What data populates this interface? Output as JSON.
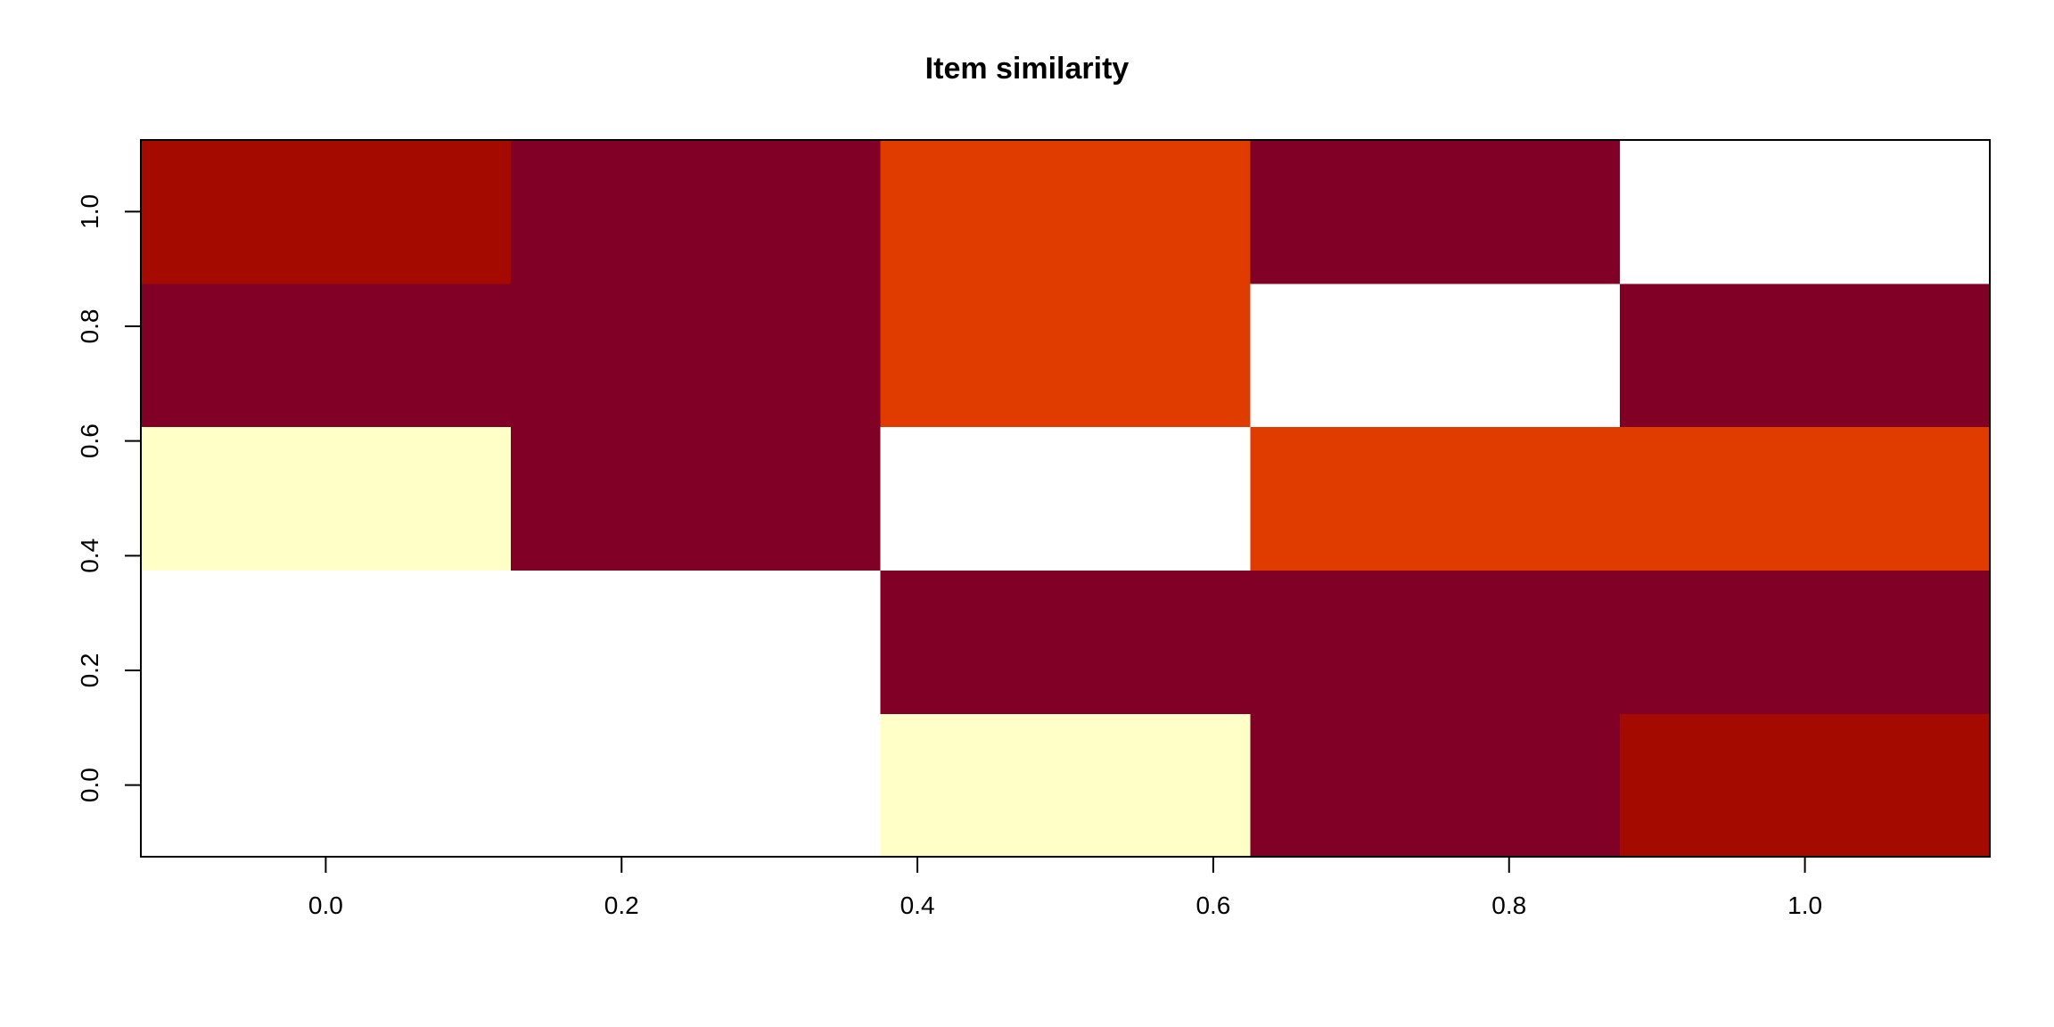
{
  "chart_data": {
    "type": "heatmap",
    "title": "Item similarity",
    "xlabel": "",
    "ylabel": "",
    "x_ticks": [
      "0.0",
      "0.2",
      "0.4",
      "0.6",
      "0.8",
      "1.0"
    ],
    "y_ticks": [
      "0.0",
      "0.2",
      "0.4",
      "0.6",
      "0.8",
      "1.0"
    ],
    "x_tick_values": [
      0.0,
      0.2,
      0.4,
      0.6,
      0.8,
      1.0
    ],
    "y_tick_values": [
      0.0,
      0.2,
      0.4,
      0.6,
      0.8,
      1.0
    ],
    "xlim": [
      -0.125,
      1.125
    ],
    "ylim": [
      -0.125,
      1.125
    ],
    "x_cell_centers": [
      0.0,
      0.25,
      0.5,
      0.75,
      1.0
    ],
    "y_cell_centers": [
      0.0,
      0.25,
      0.5,
      0.75,
      1.0
    ],
    "rows_bottom_to_top": [
      [
        0,
        0,
        4,
        1,
        2
      ],
      [
        0,
        0,
        1,
        1,
        1
      ],
      [
        4,
        1,
        0,
        3,
        3
      ],
      [
        1,
        1,
        3,
        0,
        1
      ],
      [
        2,
        1,
        3,
        1,
        0
      ]
    ],
    "color_scale": [
      "#ffffff",
      "#800026",
      "#a50a00",
      "#e03c00",
      "#ffffc8"
    ],
    "grid": false,
    "legend": "none"
  }
}
